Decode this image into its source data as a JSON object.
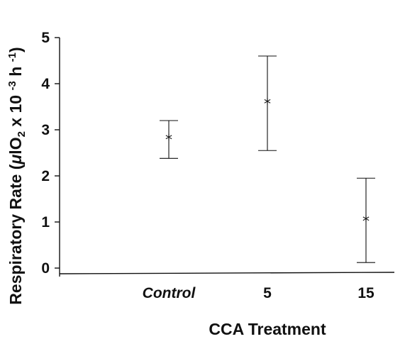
{
  "chart_data": {
    "type": "scatter",
    "categories": [
      "Control",
      "5",
      "15"
    ],
    "category_italic": [
      true,
      false,
      false
    ],
    "means": [
      2.8,
      3.58,
      1.03
    ],
    "error_low": [
      2.38,
      2.55,
      0.12
    ],
    "error_high": [
      3.2,
      4.6,
      1.95
    ],
    "marker": "*",
    "xlabel": "CCA Treatment",
    "ylabel": {
      "part1": "Respiratory  Rate (",
      "mu": "μ",
      "part2": "lO",
      "sub": "2",
      "part3": " x 10 ",
      "sup1": "-3",
      "part4": " h ",
      "sup2": "-1",
      "part5": ")"
    },
    "ylim": [
      0,
      5
    ],
    "yticks": [
      "0",
      "1",
      "2",
      "3",
      "4",
      "5"
    ],
    "grid": false
  }
}
